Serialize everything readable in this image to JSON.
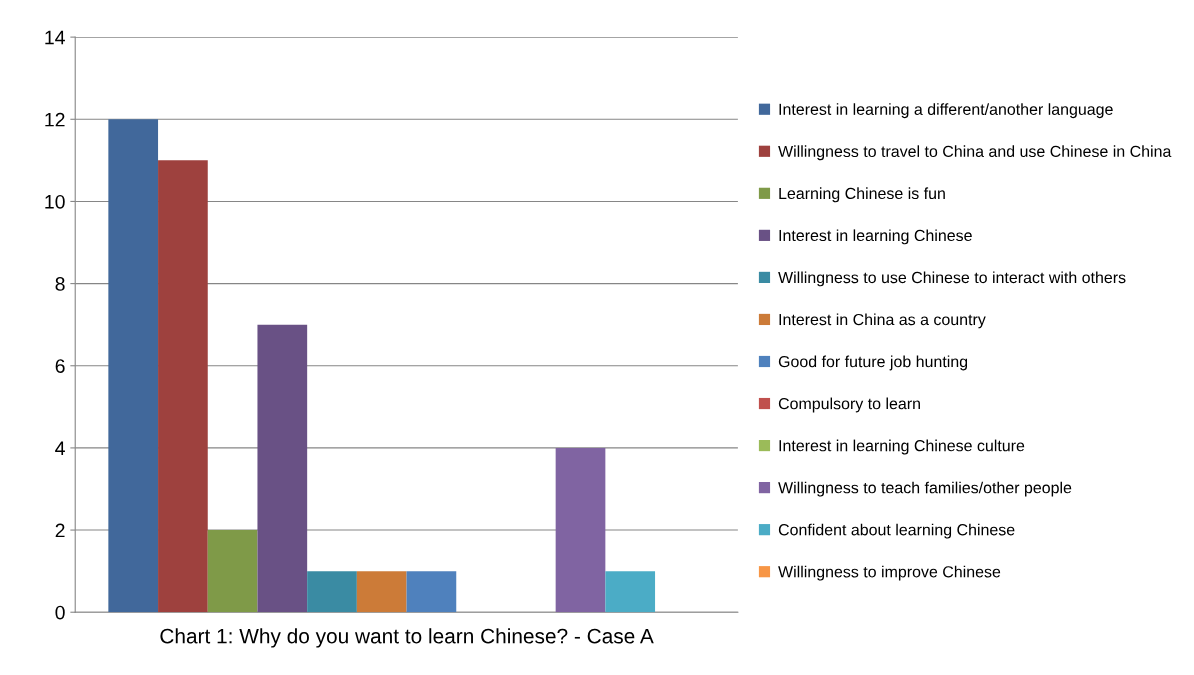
{
  "chart_data": {
    "type": "bar",
    "xlabel": "Chart 1: Why do you want to learn Chinese? - Case A",
    "categories": [
      null
    ],
    "series": [
      {
        "name": "Interest in learning a different/another language",
        "color": "#41689b",
        "values": [
          12
        ]
      },
      {
        "name": "Willingness to travel to China and use Chinese in China",
        "color": "#9e413e",
        "values": [
          11
        ]
      },
      {
        "name": "Learning Chinese is fun",
        "color": "#7f9a48",
        "values": [
          2
        ]
      },
      {
        "name": "Interest in learning Chinese",
        "color": "#695185",
        "values": [
          7
        ]
      },
      {
        "name": "Willingness to use Chinese to interact with others",
        "color": "#3a8ba3",
        "values": [
          1
        ]
      },
      {
        "name": "Interest in China as a country",
        "color": "#cc7b38",
        "values": [
          1
        ]
      },
      {
        "name": "Good for future job hunting",
        "color": "#4f81bd",
        "values": [
          1
        ]
      },
      {
        "name": "Compulsory to learn",
        "color": "#c0504d",
        "values": [
          0
        ]
      },
      {
        "name": "Interest in learning Chinese culture",
        "color": "#9bbb59",
        "values": [
          0
        ]
      },
      {
        "name": "Willingness to teach families/other people",
        "color": "#8064a2",
        "values": [
          4
        ]
      },
      {
        "name": "Confident about learning Chinese",
        "color": "#4bacc6",
        "values": [
          1
        ]
      },
      {
        "name": "Willingness to improve Chinese",
        "color": "#f79646",
        "values": [
          0
        ]
      }
    ],
    "ylim": [
      0,
      14
    ],
    "yticks": [
      0,
      2,
      4,
      6,
      8,
      10,
      12,
      14
    ],
    "grid": "y",
    "legend": "right"
  }
}
